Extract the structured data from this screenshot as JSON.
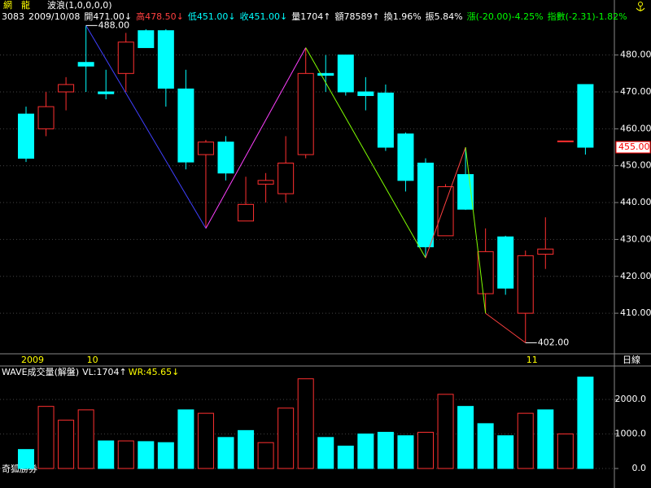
{
  "chart_data": {
    "type": "candlestick",
    "stock_name": "網　龍",
    "indicator": "波浪(1,0,0,0,0)",
    "header": [
      {
        "text": "3083",
        "color": "#ffffff"
      },
      {
        "text": "2009/10/08",
        "color": "#ffffff"
      },
      {
        "text": "開471.00↓",
        "color": "#ffffff"
      },
      {
        "text": "高478.50↓",
        "color": "#ff4040"
      },
      {
        "text": "低451.00↓",
        "color": "#00ffff"
      },
      {
        "text": "收451.00↓",
        "color": "#00ffff"
      },
      {
        "text": "量1704↑",
        "color": "#ffffff"
      },
      {
        "text": "額78589↑",
        "color": "#ffffff"
      },
      {
        "text": "換1.96%",
        "color": "#ffffff"
      },
      {
        "text": "振5.84%",
        "color": "#ffffff"
      },
      {
        "text": "漲(-20.00)-4.25%",
        "color": "#00ff00"
      },
      {
        "text": "指數(-2.31)-1.82%",
        "color": "#00ff00"
      }
    ],
    "categories": [
      "2009",
      null,
      null,
      "10",
      null,
      null,
      null,
      null,
      null,
      null,
      null,
      null,
      null,
      null,
      null,
      null,
      null,
      null,
      null,
      null,
      null,
      null,
      null,
      null,
      null,
      "11",
      null,
      null,
      null
    ],
    "period_label": "日線",
    "open": [
      464,
      460,
      470,
      478,
      470,
      475,
      486.6,
      486.6,
      470.8,
      453,
      456.4,
      435,
      445,
      442.4,
      453,
      475,
      480,
      470,
      469.7,
      458.6,
      450.7,
      431,
      447.6,
      415.3,
      430.7,
      410,
      426,
      456.7,
      472
    ],
    "high": [
      466,
      470,
      474,
      488,
      476,
      486,
      487,
      487,
      476,
      457,
      458,
      447,
      448,
      458,
      482,
      480,
      480,
      474,
      472,
      459,
      452,
      445,
      455,
      433,
      431,
      427,
      436,
      456.7,
      472
    ],
    "low": [
      451,
      458,
      465,
      470,
      468,
      470,
      482,
      466,
      449,
      433,
      446,
      435,
      440,
      440,
      452,
      470,
      469,
      465,
      454,
      443,
      425,
      431,
      438,
      410,
      415,
      402,
      422,
      456.7,
      453
    ],
    "close": [
      452,
      466,
      472,
      477,
      469.5,
      483.5,
      482,
      471,
      451,
      456.4,
      448,
      439.5,
      446,
      450.7,
      475,
      474.5,
      470,
      469,
      455,
      446,
      428,
      444.3,
      438.2,
      426.7,
      416.8,
      425.6,
      427.4,
      456.7,
      455
    ],
    "up_color": "#ff3030",
    "down_color": "#00ffff",
    "ylim": [
      399,
      488.3
    ],
    "yticks": [
      {
        "value": 410,
        "label": "410.00"
      },
      {
        "value": 420,
        "label": "420.00"
      },
      {
        "value": 430,
        "label": "430.00"
      },
      {
        "value": 440,
        "label": "440.00"
      },
      {
        "value": 450,
        "label": "450.00"
      },
      {
        "value": 460,
        "label": "460.00"
      },
      {
        "value": 470,
        "label": "470.00"
      },
      {
        "value": 480,
        "label": "480.00"
      }
    ],
    "grid": true,
    "last_price": {
      "value": 455,
      "label": "455.00"
    },
    "wave": {
      "x": [
        3,
        9,
        14,
        20,
        22,
        23,
        25
      ],
      "values": [
        488,
        433,
        482,
        425,
        455,
        410,
        402
      ],
      "colors": [
        "#4040ff",
        "#ff40ff",
        "#80ff00",
        "#ff4040",
        "#80ff00",
        "#ff4040"
      ]
    },
    "annotations": [
      {
        "x": 3,
        "value": 488,
        "label": "488.00"
      },
      {
        "x": 25,
        "value": 402,
        "label": "402.00"
      }
    ],
    "volume": {
      "title": "WAVE成交量(解盤)",
      "vl": "VL:1704↑",
      "wr": "WR:45.65↓",
      "values": [
        550,
        1800,
        1400,
        1700,
        800,
        800,
        780,
        750,
        1700,
        1600,
        900,
        1100,
        750,
        1750,
        2600,
        900,
        650,
        1000,
        1050,
        950,
        1050,
        2150,
        1800,
        1300,
        950,
        1600,
        1700,
        1000,
        2650
      ],
      "colors": [
        "#00ffff",
        "#ff3030",
        "#ff3030",
        "#ff3030",
        "#00ffff",
        "#ff3030",
        "#00ffff",
        "#00ffff",
        "#00ffff",
        "#ff3030",
        "#00ffff",
        "#00ffff",
        "#ff3030",
        "#ff3030",
        "#ff3030",
        "#00ffff",
        "#00ffff",
        "#00ffff",
        "#00ffff",
        "#00ffff",
        "#ff3030",
        "#ff3030",
        "#00ffff",
        "#00ffff",
        "#00ffff",
        "#ff3030",
        "#00ffff",
        "#ff3030",
        "#00ffff"
      ],
      "ylim": [
        0,
        2900
      ],
      "yticks": [
        {
          "value": 0,
          "label": "0.0"
        },
        {
          "value": 1000,
          "label": "1000.0"
        },
        {
          "value": 2000,
          "label": "2000.0"
        }
      ]
    },
    "footer": "奇狐勝券"
  }
}
